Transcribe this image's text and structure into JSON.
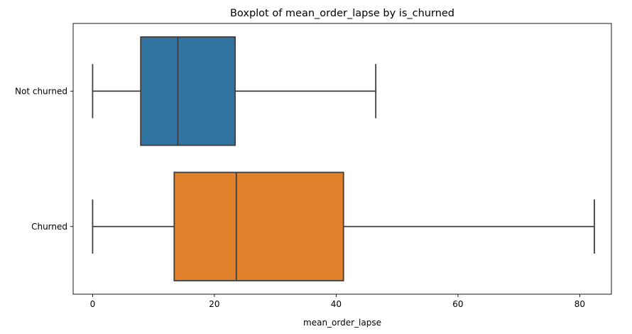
{
  "chart_data": {
    "type": "boxplot",
    "orientation": "horizontal",
    "title": "Boxplot of mean_order_lapse by is_churned",
    "xlabel": "mean_order_lapse",
    "ylabel": "",
    "xlim": [
      -3.2,
      85.2
    ],
    "x_ticks": [
      0,
      20,
      40,
      60,
      80
    ],
    "grid": false,
    "categories": [
      "Not churned",
      "Churned"
    ],
    "boxes": [
      {
        "category": "Not churned",
        "whisker_low": 0,
        "q1": 7.9,
        "median": 14.0,
        "q3": 23.4,
        "whisker_high": 46.5,
        "color": "#3274a1"
      },
      {
        "category": "Churned",
        "whisker_low": 0,
        "q1": 13.4,
        "median": 23.6,
        "q3": 41.2,
        "whisker_high": 82.4,
        "color": "#e1812c"
      }
    ],
    "line_color": "#3f3f3f"
  }
}
